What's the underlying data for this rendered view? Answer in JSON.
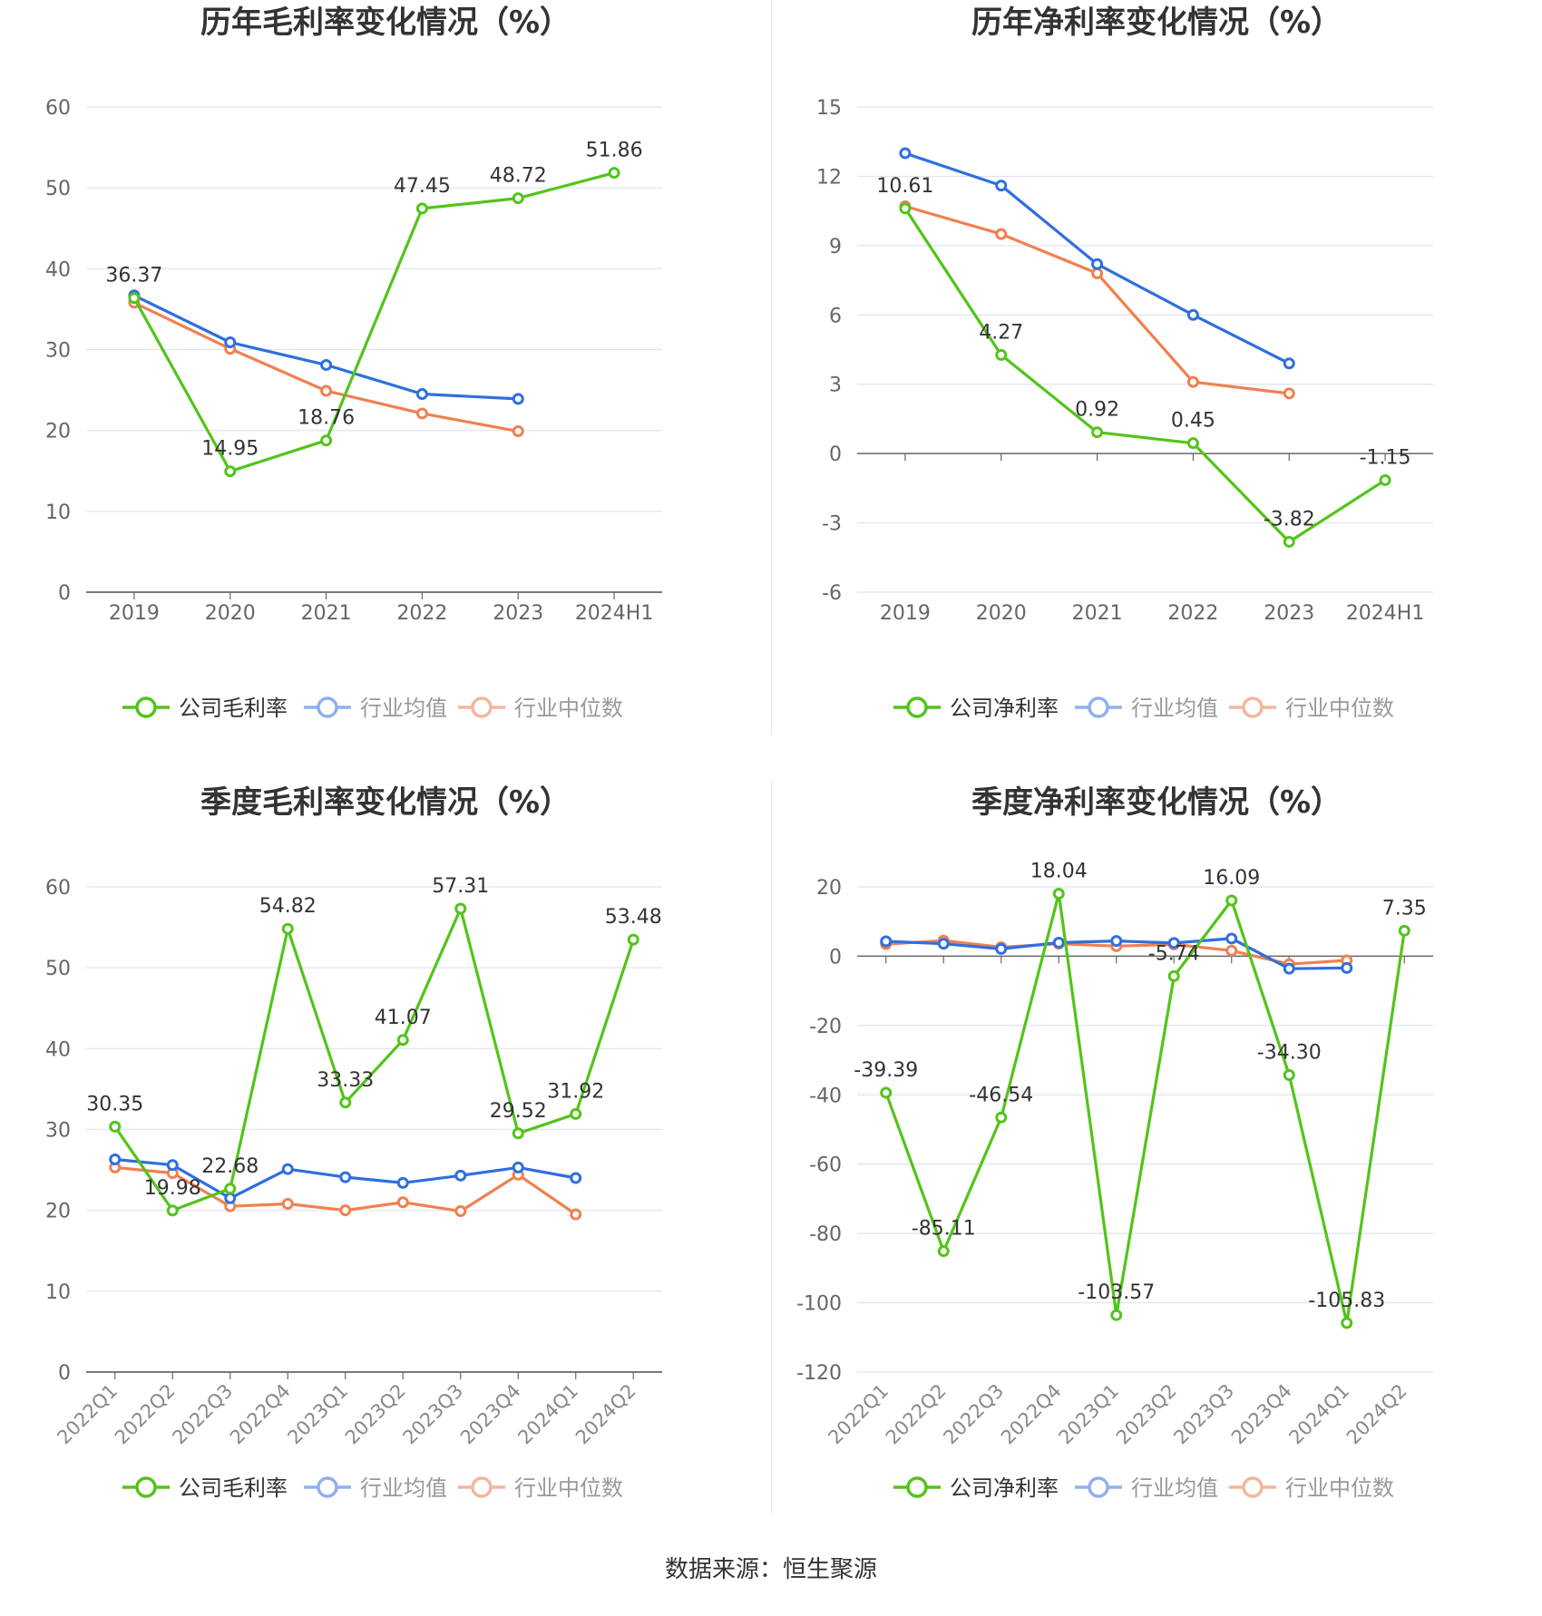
{
  "source_text": "数据来源：恒生聚源",
  "colors": {
    "company": "#52c41a",
    "avg": "#2f6fde",
    "median": "#f0804f"
  },
  "chart_data": [
    {
      "type": "line",
      "title": "历年毛利率变化情况（%）",
      "categories": [
        "2019",
        "2020",
        "2021",
        "2022",
        "2023",
        "2024H1"
      ],
      "ylim": [
        0,
        60
      ],
      "yticks": [
        0,
        10,
        20,
        30,
        40,
        50,
        60
      ],
      "grid": true,
      "legend": "bottom",
      "rotate_x": false,
      "series": [
        {
          "name": "公司毛利率",
          "key": "company",
          "labels": true,
          "values": [
            36.37,
            14.95,
            18.76,
            47.45,
            48.72,
            51.86
          ]
        },
        {
          "name": "行业均值",
          "key": "avg",
          "values": [
            36.7,
            30.9,
            28.1,
            24.5,
            23.9,
            null
          ]
        },
        {
          "name": "行业中位数",
          "key": "median",
          "values": [
            35.8,
            30.1,
            24.9,
            22.1,
            19.9,
            null
          ]
        }
      ]
    },
    {
      "type": "line",
      "title": "历年净利率变化情况（%）",
      "categories": [
        "2019",
        "2020",
        "2021",
        "2022",
        "2023",
        "2024H1"
      ],
      "ylim": [
        -6,
        15
      ],
      "yticks": [
        -6,
        -3,
        0,
        3,
        6,
        9,
        12,
        15
      ],
      "grid": true,
      "legend": "bottom",
      "rotate_x": false,
      "series": [
        {
          "name": "公司净利率",
          "key": "company",
          "labels": true,
          "values": [
            10.61,
            4.27,
            0.92,
            0.45,
            -3.82,
            -1.15
          ]
        },
        {
          "name": "行业均值",
          "key": "avg",
          "values": [
            13.0,
            11.6,
            8.2,
            6.0,
            3.9,
            null
          ]
        },
        {
          "name": "行业中位数",
          "key": "median",
          "values": [
            10.7,
            9.5,
            7.8,
            3.1,
            2.6,
            null
          ]
        }
      ]
    },
    {
      "type": "line",
      "title": "季度毛利率变化情况（%）",
      "categories": [
        "2022Q1",
        "2022Q2",
        "2022Q3",
        "2022Q4",
        "2023Q1",
        "2023Q2",
        "2023Q3",
        "2023Q4",
        "2024Q1",
        "2024Q2"
      ],
      "ylim": [
        0,
        60
      ],
      "yticks": [
        0,
        10,
        20,
        30,
        40,
        50,
        60
      ],
      "grid": true,
      "legend": "bottom",
      "rotate_x": true,
      "series": [
        {
          "name": "公司毛利率",
          "key": "company",
          "labels": true,
          "values": [
            30.35,
            19.98,
            22.68,
            54.82,
            33.33,
            41.07,
            57.31,
            29.52,
            31.92,
            53.48
          ]
        },
        {
          "name": "行业均值",
          "key": "avg",
          "values": [
            26.3,
            25.6,
            21.5,
            25.1,
            24.1,
            23.4,
            24.3,
            25.3,
            24.0,
            null
          ]
        },
        {
          "name": "行业中位数",
          "key": "median",
          "values": [
            25.3,
            24.6,
            20.5,
            20.8,
            20.0,
            21.0,
            19.9,
            24.4,
            19.5,
            null
          ]
        }
      ]
    },
    {
      "type": "line",
      "title": "季度净利率变化情况（%）",
      "categories": [
        "2022Q1",
        "2022Q2",
        "2022Q3",
        "2022Q4",
        "2023Q1",
        "2023Q2",
        "2023Q3",
        "2023Q4",
        "2024Q1",
        "2024Q2"
      ],
      "ylim": [
        -120,
        20
      ],
      "yticks": [
        -120,
        -100,
        -80,
        -60,
        -40,
        -20,
        0,
        20
      ],
      "grid": true,
      "legend": "bottom",
      "rotate_x": true,
      "series": [
        {
          "name": "公司净利率",
          "key": "company",
          "labels": true,
          "values": [
            -39.39,
            -85.11,
            -46.54,
            18.04,
            -103.57,
            -5.74,
            16.09,
            -34.3,
            -105.83,
            7.35
          ]
        },
        {
          "name": "行业均值",
          "key": "avg",
          "values": [
            4.3,
            3.6,
            2.1,
            3.9,
            4.4,
            3.8,
            5.1,
            -3.6,
            -3.4,
            null
          ]
        },
        {
          "name": "行业中位数",
          "key": "median",
          "values": [
            3.5,
            4.5,
            2.6,
            3.6,
            2.9,
            3.4,
            1.6,
            -2.3,
            -1.2,
            null
          ]
        }
      ]
    }
  ]
}
